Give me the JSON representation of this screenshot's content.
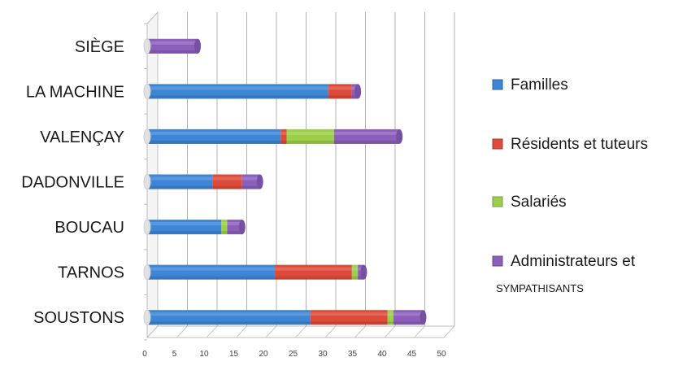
{
  "chart_data": {
    "type": "bar",
    "orientation": "horizontal",
    "stacked": true,
    "categories": [
      "SIÈGE",
      "LA MACHINE",
      "VALENÇAY",
      "DADONVILLE",
      "BOUCAU",
      "TARNOS",
      "SOUSTONS"
    ],
    "series": [
      {
        "name": "Familles",
        "color": "#3d86d6",
        "values": [
          0,
          30.5,
          22.5,
          11,
          12.5,
          21.5,
          27.5
        ]
      },
      {
        "name": "Résidents et tuteurs",
        "color": "#de4b3a",
        "values": [
          0,
          4,
          1,
          5,
          0,
          13,
          13
        ]
      },
      {
        "name": "Salariés",
        "color": "#9bcf4a",
        "values": [
          0,
          0,
          8,
          0,
          1,
          1,
          1
        ]
      },
      {
        "name": "Administrateurs et",
        "name_line2": "SYMPATHISANTS",
        "color": "#8c5fbd",
        "values": [
          8.5,
          1,
          11,
          3,
          2.5,
          1,
          5
        ]
      }
    ],
    "x_ticks": [
      "0",
      "5",
      "10",
      "15",
      "20",
      "25",
      "30",
      "35",
      "40",
      "45",
      "50"
    ],
    "xlim": [
      0,
      50
    ],
    "grid": true,
    "legend": "right",
    "title": "",
    "xlabel": "",
    "ylabel": ""
  }
}
